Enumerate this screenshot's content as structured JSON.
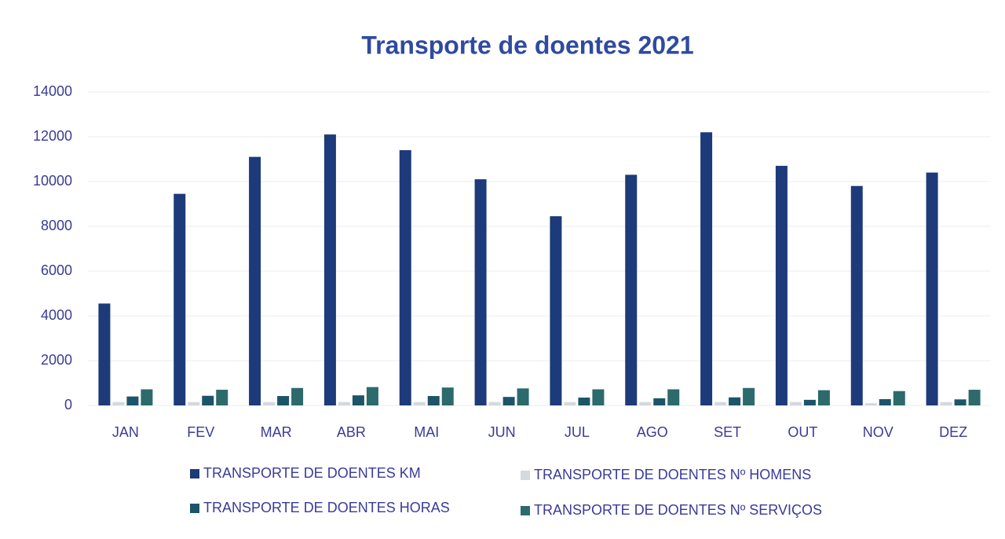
{
  "chart_data": {
    "type": "bar",
    "title": "Transporte de doentes 2021",
    "categories": [
      "JAN",
      "FEV",
      "MAR",
      "ABR",
      "MAI",
      "JUN",
      "JUL",
      "AGO",
      "SET",
      "OUT",
      "NOV",
      "DEZ"
    ],
    "series": [
      {
        "name": "TRANSPORTE DE DOENTES KM",
        "color": "#1d3a7a",
        "values": [
          4550,
          9450,
          11100,
          12100,
          11400,
          10100,
          8450,
          10300,
          12200,
          10700,
          9800,
          10400
        ]
      },
      {
        "name": "TRANSPORTE DE DOENTES Nº HOMENS",
        "color": "#d3d9dd",
        "values": [
          150,
          150,
          150,
          150,
          150,
          150,
          150,
          150,
          150,
          150,
          100,
          150
        ]
      },
      {
        "name": "TRANSPORTE DE DOENTES HORAS",
        "color": "#1c5569",
        "values": [
          400,
          430,
          420,
          450,
          420,
          380,
          350,
          320,
          360,
          250,
          280,
          270
        ]
      },
      {
        "name": "TRANSPORTE DE DOENTES Nº SERVIÇOS",
        "color": "#2c6a6c",
        "values": [
          720,
          700,
          780,
          820,
          800,
          760,
          720,
          720,
          780,
          680,
          640,
          700
        ]
      }
    ],
    "ylim": [
      0,
      14000
    ],
    "yticks": [
      0,
      2000,
      4000,
      6000,
      8000,
      10000,
      12000,
      14000
    ],
    "grid": true
  }
}
